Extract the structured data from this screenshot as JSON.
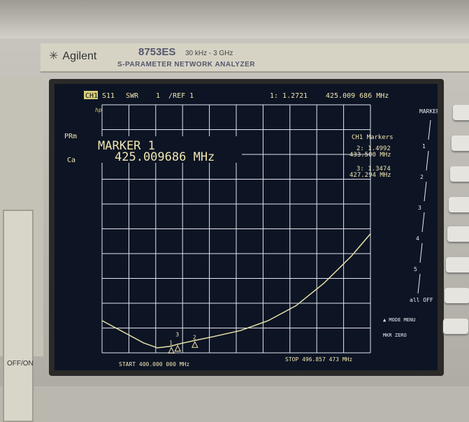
{
  "device": {
    "brand": "Agilent",
    "model": "8753ES",
    "range": "30 kHz - 3 GHz",
    "description": "S-PARAMETER NETWORK ANALYZER",
    "power_label": "OFF/ON"
  },
  "screen": {
    "channel": "CH1",
    "param": "S11",
    "format": "SWR",
    "scale": "1  /REF 1",
    "marker_readout": "1: 1.2721",
    "marker_freq": "425.009 686 MHz",
    "hp_label": "hp",
    "prm": "PRm",
    "cor": "Ca",
    "marker_title": "MARKER 1",
    "marker_big_freq": "425.009686 MHz",
    "markers_list_title": "CH1 Markers",
    "marker2_value": "2: 1.4992",
    "marker2_freq": "433.500 MHz",
    "marker3_value": "3: 1.3474",
    "marker3_freq": "427.294 MHz",
    "start": "START 400.000 000 MHz",
    "stop": "STOP 496.857 473 MHz"
  },
  "softkeys": {
    "title": "MARKER",
    "items": [
      "1",
      "2",
      "3",
      "4",
      "5",
      "all OFF"
    ],
    "mode_menu": "▲ MODE MENU",
    "mkr_zero": "MKR ZERO"
  },
  "chart_data": {
    "type": "line",
    "xlabel": "",
    "ylabel": "",
    "xlim": [
      400,
      496.857473
    ],
    "ylim": [
      1,
      11
    ],
    "grid": true,
    "x": [
      400,
      405,
      410,
      415,
      420,
      425.009686,
      427.294,
      433.5,
      440,
      450,
      460,
      470,
      480,
      490,
      496.857
    ],
    "y": [
      2.3,
      2.0,
      1.7,
      1.4,
      1.2,
      1.2721,
      1.3474,
      1.4992,
      1.65,
      1.9,
      2.3,
      2.9,
      3.8,
      4.9,
      5.8
    ],
    "markers": [
      {
        "label": "1",
        "x": 425.009686,
        "y": 1.2721
      },
      {
        "label": "2",
        "x": 433.5,
        "y": 1.4992
      },
      {
        "label": "3",
        "x": 427.294,
        "y": 1.3474
      }
    ],
    "trace_color": "#e8e4a8",
    "grid_color": "#dfe6f0",
    "text_color": "#f0e6b0"
  }
}
